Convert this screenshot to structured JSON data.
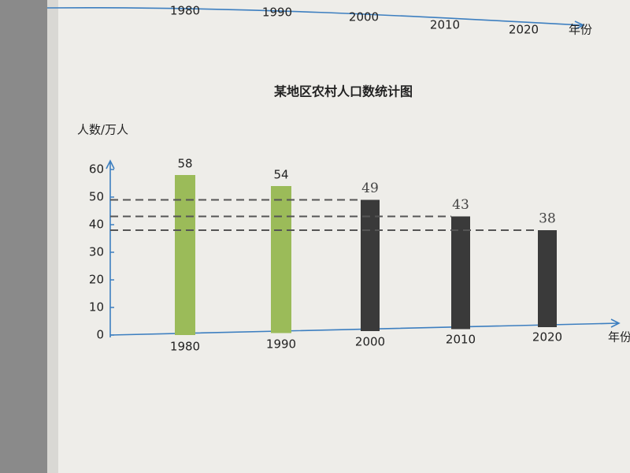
{
  "chart_data": [
    {
      "type": "axis",
      "categories": [
        "1980",
        "1990",
        "2000",
        "2010",
        "2020"
      ],
      "x_label": "年份"
    },
    {
      "type": "bar",
      "title": "某地区农村人口数统计图",
      "y_label": "人数/万人",
      "x_label": "年份",
      "categories": [
        "1980",
        "1990",
        "2000",
        "2010",
        "2020"
      ],
      "values": [
        58,
        54,
        49,
        43,
        38
      ],
      "colors": [
        "#9bbb59",
        "#9bbb59",
        "#3a3a3a",
        "#3a3a3a",
        "#3a3a3a"
      ],
      "ylim": [
        0,
        65
      ],
      "yticks": [
        0,
        10,
        20,
        30,
        40,
        50,
        60
      ]
    }
  ]
}
